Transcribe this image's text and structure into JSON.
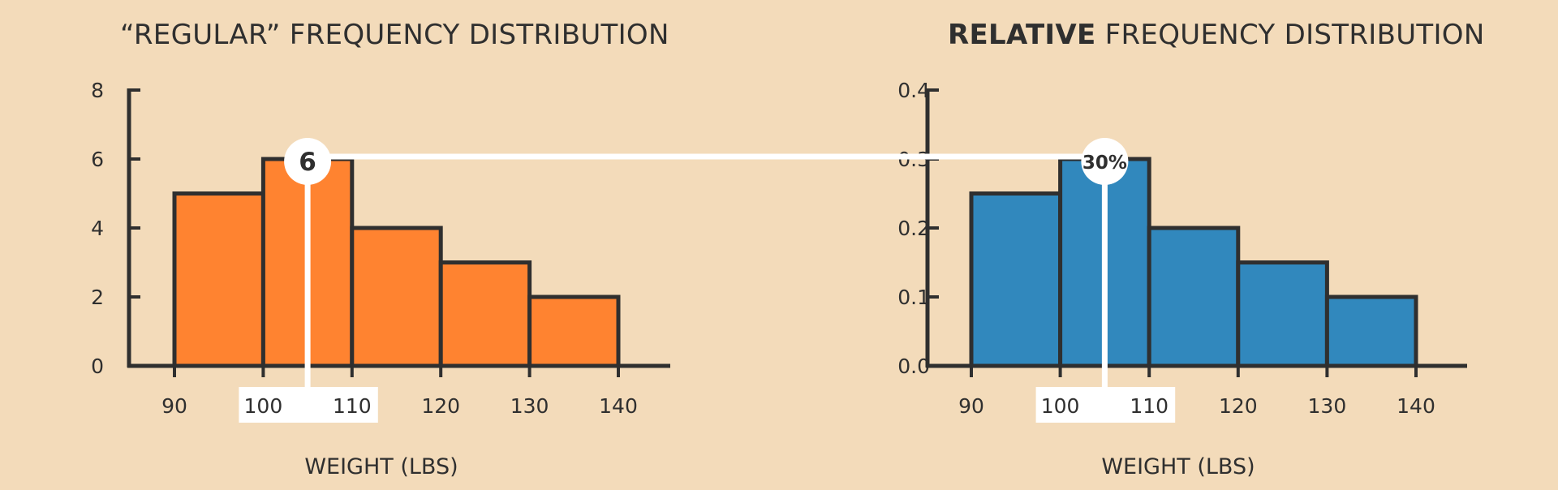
{
  "connector_color": "#ffffff",
  "charts": [
    {
      "type": "bar",
      "title_prefix": "",
      "title_bold": "",
      "title_main": "“REGULAR” FREQUENCY DISTRIBUTION",
      "xlabel": "WEIGHT (LBS)",
      "bin_edges": [
        90,
        100,
        110,
        120,
        130,
        140
      ],
      "values": [
        5,
        6,
        4,
        3,
        2
      ],
      "yticks": [
        "0",
        "2",
        "4",
        "6",
        "8"
      ],
      "ylim": [
        0,
        8
      ],
      "xticks": [
        "90",
        "100",
        "110",
        "120",
        "130",
        "140"
      ],
      "bar_color": "#ff8330",
      "highlight_bin": 1,
      "callout": "6"
    },
    {
      "type": "bar",
      "title_prefix": "",
      "title_bold": "RELATIVE",
      "title_main": " FREQUENCY DISTRIBUTION",
      "xlabel": "WEIGHT (LBS)",
      "bin_edges": [
        90,
        100,
        110,
        120,
        130,
        140
      ],
      "values": [
        0.25,
        0.3,
        0.2,
        0.15,
        0.1
      ],
      "yticks": [
        "0.0",
        "0.1",
        "0.2",
        "0.3",
        "0.4"
      ],
      "ylim": [
        0,
        0.4
      ],
      "xticks": [
        "90",
        "100",
        "110",
        "120",
        "130",
        "140"
      ],
      "bar_color": "#3188bd",
      "highlight_bin": 1,
      "callout": "30%"
    }
  ],
  "chart_data": [
    {
      "type": "bar",
      "title": "“REGULAR” FREQUENCY DISTRIBUTION",
      "xlabel": "WEIGHT (LBS)",
      "ylabel": "",
      "categories": [
        "90–100",
        "100–110",
        "110–120",
        "120–130",
        "130–140"
      ],
      "bin_edges": [
        90,
        100,
        110,
        120,
        130,
        140
      ],
      "values": [
        5,
        6,
        4,
        3,
        2
      ],
      "ylim": [
        0,
        8
      ],
      "xlim": [
        90,
        140
      ],
      "highlight": {
        "bin": "100–110",
        "value": 6,
        "label": "6"
      },
      "grid": false,
      "legend": "none"
    },
    {
      "type": "bar",
      "title": "RELATIVE FREQUENCY DISTRIBUTION",
      "xlabel": "WEIGHT (LBS)",
      "ylabel": "",
      "categories": [
        "90–100",
        "100–110",
        "110–120",
        "120–130",
        "130–140"
      ],
      "bin_edges": [
        90,
        100,
        110,
        120,
        130,
        140
      ],
      "values": [
        0.25,
        0.3,
        0.2,
        0.15,
        0.1
      ],
      "ylim": [
        0,
        0.4
      ],
      "xlim": [
        90,
        140
      ],
      "highlight": {
        "bin": "100–110",
        "value": 0.3,
        "label": "30%"
      },
      "grid": false,
      "legend": "none"
    }
  ]
}
